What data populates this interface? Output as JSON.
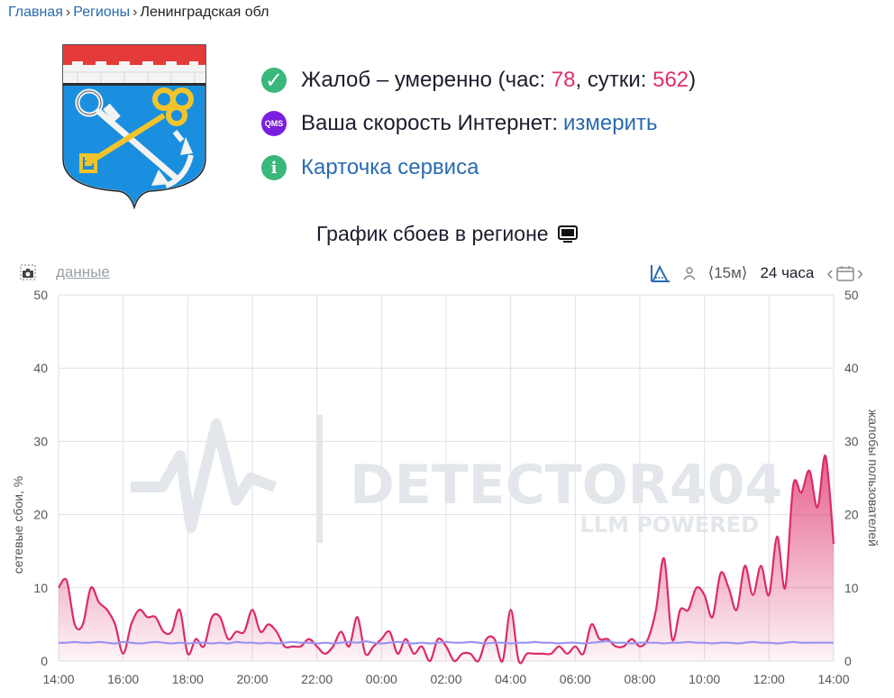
{
  "breadcrumb": {
    "home": "Главная",
    "regions": "Регионы",
    "current": "Ленинградская обл"
  },
  "status": {
    "complaints_prefix": "Жалоб – умеренно (час: ",
    "complaints_hour": "78",
    "complaints_mid": ", сутки: ",
    "complaints_day": "562",
    "complaints_suffix": ")",
    "speed_prefix": "Ваша скорость Интернет: ",
    "speed_link": "измерить",
    "card_link": "Карточка сервиса",
    "qms_label": "QMS",
    "info_glyph": "i",
    "check_glyph": "✓"
  },
  "chart_title": "График сбоев в регионе",
  "toolbar": {
    "data_link": "данные",
    "interval": "⟨15м⟩",
    "period": "24 часа",
    "prev_glyph": "‹",
    "next_glyph": "›"
  },
  "watermark": {
    "brand": "DETECTOR404",
    "tagline": "LLM POWERED"
  },
  "colors": {
    "complaints": "#dd2a68",
    "network": "#9c93f0",
    "accent": "#2a6bb0",
    "grid": "#dfe1e6"
  },
  "chart_data": {
    "type": "area",
    "ylabel_left": "сетевые сбои, %",
    "ylabel_right": "жалобы пользователей",
    "ylim": [
      0,
      50
    ],
    "yticks": [
      0,
      10,
      20,
      30,
      40,
      50
    ],
    "xticks": [
      "14:00",
      "16:00",
      "18:00",
      "20:00",
      "22:00",
      "00:00",
      "02:00",
      "04:00",
      "06:00",
      "08:00",
      "10:00",
      "12:00",
      "14:00"
    ],
    "grid": true,
    "series": [
      {
        "name": "жалобы пользователей",
        "style": "area",
        "values": [
          10,
          11,
          5,
          5,
          10,
          8,
          7,
          5,
          1,
          5,
          7,
          6,
          6,
          4,
          4,
          7,
          1,
          3,
          2,
          6,
          6,
          3,
          4,
          4,
          7,
          4,
          5,
          4,
          2,
          2,
          2,
          3,
          2,
          1,
          2,
          4,
          2,
          6,
          1,
          2,
          3,
          4,
          1,
          3,
          1,
          2,
          0,
          3,
          2,
          0,
          1,
          1,
          0,
          3,
          3,
          0,
          7,
          0,
          1,
          1,
          1,
          1,
          2,
          1,
          2,
          1,
          5,
          3,
          3,
          2,
          2,
          3,
          2,
          3,
          7,
          14,
          3,
          7,
          7,
          10,
          9,
          6,
          12,
          10,
          7,
          13,
          9,
          13,
          9,
          17,
          10,
          24,
          23,
          26,
          21,
          28,
          16
        ]
      },
      {
        "name": "сетевые сбои",
        "style": "line",
        "values": [
          2.5,
          2.5,
          2.6,
          2.5,
          2.5,
          2.6,
          2.5,
          2.4,
          2.6,
          2.5,
          2.4,
          2.5,
          2.6,
          2.5,
          2.4,
          2.5,
          2.4,
          2.5,
          2.5,
          2.4,
          2.5,
          2.4,
          2.6,
          2.5,
          2.5,
          2.4,
          2.5,
          2.4,
          2.5,
          2.6,
          2.5,
          2.5,
          2.4,
          2.5,
          2.4,
          2.5,
          2.6,
          2.5,
          2.7,
          2.5,
          2.4,
          2.5,
          2.6,
          2.5,
          2.4,
          2.5,
          2.4,
          2.5,
          2.6,
          2.5,
          2.5,
          2.6,
          2.5,
          2.4,
          2.5,
          2.5,
          2.4,
          2.5,
          2.5,
          2.6,
          2.5,
          2.5,
          2.4,
          2.5,
          2.5,
          2.4,
          2.5,
          2.6,
          2.7,
          2.5,
          2.5,
          2.4,
          2.5,
          2.5,
          2.5,
          2.4,
          2.5,
          2.5,
          2.6,
          2.5,
          2.5,
          2.4,
          2.5,
          2.5,
          2.4,
          2.5,
          2.6,
          2.5,
          2.5,
          2.4,
          2.5,
          2.6,
          2.5,
          2.5,
          2.5,
          2.5,
          2.5
        ]
      }
    ]
  }
}
